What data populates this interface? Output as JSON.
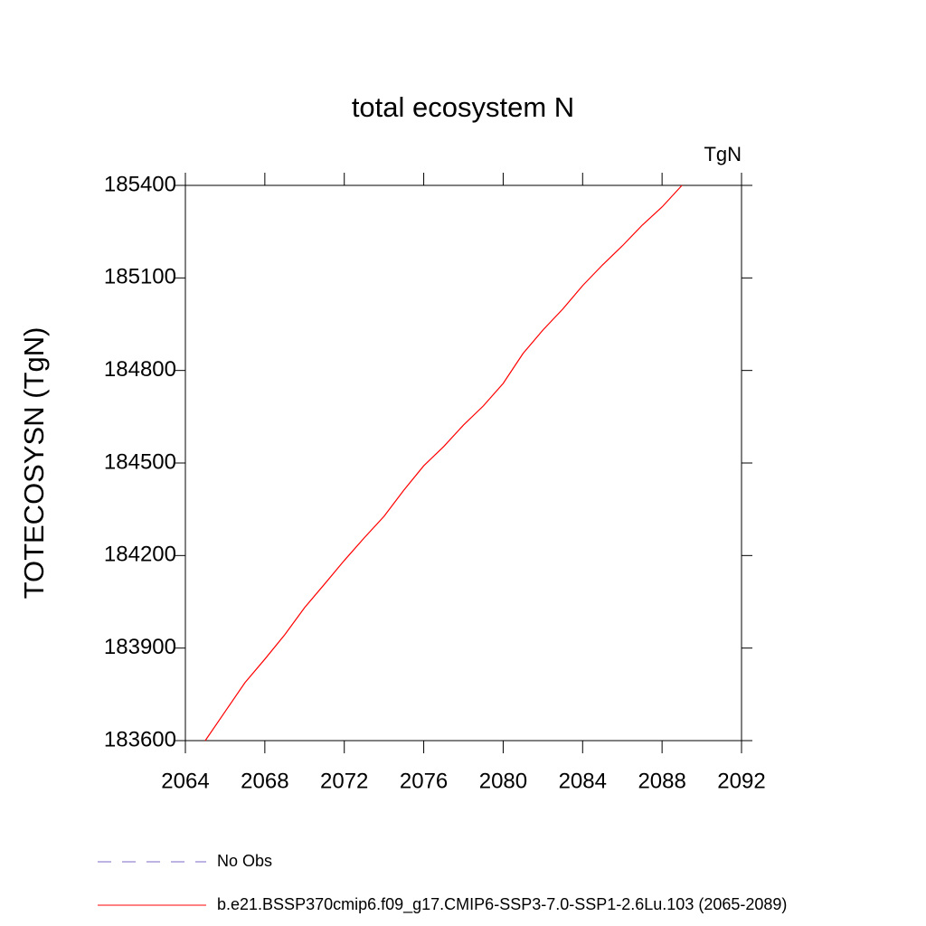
{
  "chart_data": {
    "type": "line",
    "title": "total ecosystem N",
    "units": "TgN",
    "y_label": "TOTECOSYSN  (TgN)",
    "x": [
      2065,
      2066,
      2067,
      2068,
      2069,
      2070,
      2071,
      2072,
      2073,
      2074,
      2075,
      2076,
      2077,
      2078,
      2079,
      2080,
      2081,
      2082,
      2083,
      2084,
      2085,
      2086,
      2087,
      2088,
      2089
    ],
    "series": [
      {
        "name": "b.e21.BSSP370cmip6.f09_g17.CMIP6-SSP3-7.0-SSP1-2.6Lu.103 (2065-2089)",
        "color": "#ff0000",
        "values": [
          183600,
          183694,
          183788,
          183864,
          183943,
          184031,
          184107,
          184184,
          184257,
          184327,
          184412,
          184491,
          184553,
          184623,
          184685,
          184758,
          184855,
          184931,
          184999,
          185075,
          185142,
          185204,
          185271,
          185330,
          185400
        ]
      }
    ],
    "reference_legend": {
      "name": "No Obs",
      "color": "#7b68c8",
      "dashed": true
    },
    "xlim": [
      2064,
      2092
    ],
    "xticks": [
      2064,
      2068,
      2072,
      2076,
      2080,
      2084,
      2088,
      2092
    ],
    "ylim": [
      183600,
      185400
    ],
    "yticks": [
      183600,
      183900,
      184200,
      184500,
      184800,
      185100,
      185400
    ],
    "grid": false
  }
}
